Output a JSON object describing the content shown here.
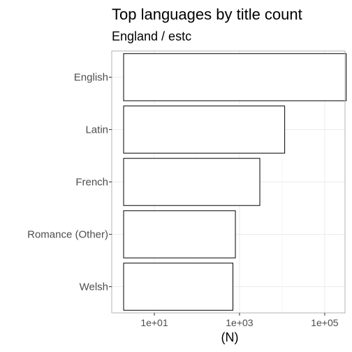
{
  "chart_data": {
    "type": "bar",
    "orientation": "horizontal",
    "title": "Top languages by title count",
    "subtitle": "England / estc",
    "xlabel": "(N)",
    "ylabel": "",
    "x_scale": "log10",
    "xlim": [
      1,
      300000
    ],
    "x_ticks": [
      10,
      1000,
      100000
    ],
    "x_tick_labels": [
      "1e+01",
      "1e+03",
      "1e+05"
    ],
    "grid": true,
    "legend": "none",
    "bar_fill": "#ffffff",
    "bar_stroke": "#000000",
    "categories": [
      "English",
      "Latin",
      "French",
      "Romance (Other)",
      "Welsh"
    ],
    "values": [
      320000,
      11500,
      3000,
      800,
      700
    ]
  }
}
